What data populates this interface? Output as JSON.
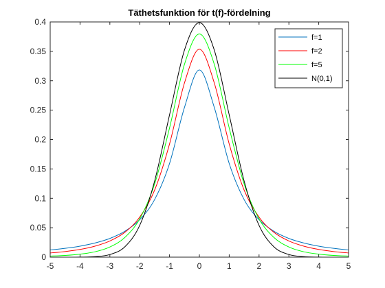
{
  "chart_data": {
    "type": "line",
    "title": "Täthetsfunktion för t(f)-fördelning",
    "xlabel": "",
    "ylabel": "",
    "xlim": [
      -5,
      5
    ],
    "ylim": [
      0,
      0.4
    ],
    "xticks": [
      -5,
      -4,
      -3,
      -2,
      -1,
      0,
      1,
      2,
      3,
      4,
      5
    ],
    "xtick_labels": [
      "-5",
      "-4",
      "-3",
      "-2",
      "-1",
      "0",
      "1",
      "2",
      "3",
      "4",
      "5"
    ],
    "yticks": [
      0,
      0.05,
      0.1,
      0.15,
      0.2,
      0.25,
      0.3,
      0.35,
      0.4
    ],
    "ytick_labels": [
      "0",
      "0.05",
      "0.1",
      "0.15",
      "0.2",
      "0.25",
      "0.3",
      "0.35",
      "0.4"
    ],
    "grid": false,
    "legend_position": "top-right",
    "x": [
      -5,
      -4.5,
      -4,
      -3.5,
      -3,
      -2.5,
      -2,
      -1.5,
      -1,
      -0.5,
      0,
      0.5,
      1,
      1.5,
      2,
      2.5,
      3,
      3.5,
      4,
      4.5,
      5
    ],
    "series": [
      {
        "name": "f=1",
        "color": "#0072BD",
        "values": [
          0.0122,
          0.015,
          0.0187,
          0.0241,
          0.0318,
          0.0439,
          0.0637,
          0.0979,
          0.1592,
          0.2546,
          0.3183,
          0.2546,
          0.1592,
          0.0979,
          0.0637,
          0.0439,
          0.0318,
          0.0241,
          0.0187,
          0.015,
          0.0122
        ]
      },
      {
        "name": "f=2",
        "color": "#FF0000",
        "values": [
          0.0071,
          0.0095,
          0.0131,
          0.0187,
          0.0275,
          0.0422,
          0.068,
          0.114,
          0.1925,
          0.2962,
          0.3536,
          0.2962,
          0.1925,
          0.114,
          0.068,
          0.0422,
          0.0275,
          0.0187,
          0.0131,
          0.0095,
          0.0071
        ]
      },
      {
        "name": "f=5",
        "color": "#00FF00",
        "values": [
          0.0018,
          0.0029,
          0.0051,
          0.0091,
          0.0173,
          0.0334,
          0.0651,
          0.1245,
          0.2197,
          0.3279,
          0.3796,
          0.3279,
          0.2197,
          0.1245,
          0.0651,
          0.0334,
          0.0173,
          0.0091,
          0.0051,
          0.0029,
          0.0018
        ]
      },
      {
        "name": "N(0,1)",
        "color": "#000000",
        "values": [
          1.5e-06,
          1.6e-05,
          0.0001338,
          0.000873,
          0.004432,
          0.01753,
          0.05399,
          0.1295,
          0.242,
          0.3521,
          0.3989,
          0.3521,
          0.242,
          0.1295,
          0.05399,
          0.01753,
          0.004432,
          0.000873,
          0.0001338,
          1.6e-05,
          1.5e-06
        ]
      }
    ]
  }
}
